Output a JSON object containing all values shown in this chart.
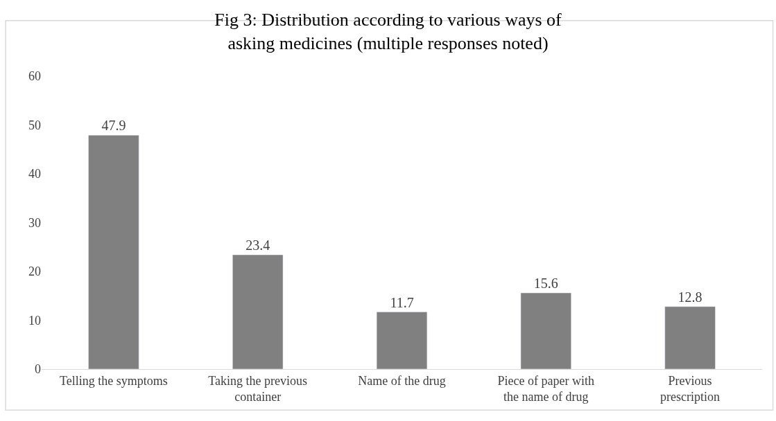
{
  "chart_data": {
    "type": "bar",
    "title": "Fig 3: Distribution according to various ways of asking medicines (multiple responses noted)",
    "categories": [
      "Telling the symptoms",
      "Taking the previous container",
      "Name of the drug",
      "Piece of paper with the name of drug",
      "Previous prescription"
    ],
    "values": [
      47.9,
      23.4,
      11.7,
      15.6,
      12.8
    ],
    "color": "#808080",
    "ylim": [
      0,
      60
    ],
    "yticks": [
      0,
      10,
      20,
      30,
      40,
      50,
      60
    ],
    "grid": false,
    "data_labels": true,
    "legend": false
  }
}
